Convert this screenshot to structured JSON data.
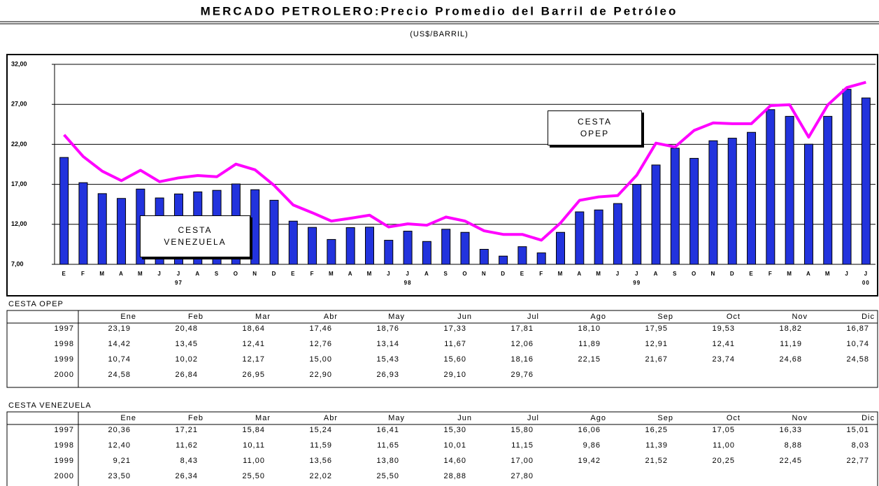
{
  "chart_data": {
    "type": "bar_line",
    "title": "MERCADO PETROLERO:Precio Promedio del Barril de Petróleo",
    "subtitle": "(US$/BARRIL)",
    "categories": [
      "E",
      "F",
      "M",
      "A",
      "M",
      "J",
      "J",
      "A",
      "S",
      "O",
      "N",
      "D",
      "E",
      "F",
      "M",
      "A",
      "M",
      "J",
      "J",
      "A",
      "S",
      "O",
      "N",
      "D",
      "E",
      "F",
      "M",
      "A",
      "M",
      "J",
      "J",
      "A",
      "S",
      "O",
      "N",
      "D",
      "E",
      "F",
      "M",
      "A",
      "M",
      "J",
      "J"
    ],
    "year_labels": [
      "97",
      "98",
      "99",
      "00"
    ],
    "ylim": [
      7,
      32
    ],
    "yticks": [
      {
        "value": 7,
        "label": "7,00"
      },
      {
        "value": 12,
        "label": "12,00"
      },
      {
        "value": 17,
        "label": "17,00"
      },
      {
        "value": 22,
        "label": "22,00"
      },
      {
        "value": 27,
        "label": "27,00"
      },
      {
        "value": 32,
        "label": "32,00"
      }
    ],
    "grid": true,
    "series": [
      {
        "name": "CESTA VENEZUELA",
        "type": "bar",
        "color": "#2233dd",
        "values": [
          20.36,
          17.21,
          15.84,
          15.24,
          16.41,
          15.3,
          15.8,
          16.06,
          16.25,
          17.05,
          16.33,
          15.01,
          12.4,
          11.62,
          10.11,
          11.59,
          11.65,
          10.01,
          11.15,
          9.86,
          11.39,
          11.0,
          8.88,
          8.03,
          9.21,
          8.43,
          11.0,
          13.56,
          13.8,
          14.6,
          17.0,
          19.42,
          21.52,
          20.25,
          22.45,
          22.77,
          23.5,
          26.34,
          25.5,
          22.02,
          25.5,
          28.88,
          27.8
        ]
      },
      {
        "name": "CESTA OPEP",
        "type": "line",
        "color": "#ff00ff",
        "values": [
          23.19,
          20.48,
          18.64,
          17.46,
          18.76,
          17.33,
          17.81,
          18.1,
          17.95,
          19.53,
          18.82,
          16.87,
          14.42,
          13.45,
          12.41,
          12.76,
          13.14,
          11.67,
          12.06,
          11.89,
          12.91,
          12.41,
          11.19,
          10.74,
          10.74,
          10.02,
          12.17,
          15.0,
          15.43,
          15.6,
          18.16,
          22.15,
          21.67,
          23.74,
          24.68,
          24.58,
          24.58,
          26.84,
          26.95,
          22.9,
          26.93,
          29.1,
          29.76
        ]
      }
    ]
  },
  "tables": [
    {
      "title": "CESTA OPEP",
      "columns": [
        "Ene",
        "Feb",
        "Mar",
        "Abr",
        "May",
        "Jun",
        "Jul",
        "Ago",
        "Sep",
        "Oct",
        "Nov",
        "Dic"
      ],
      "rows": [
        {
          "year": "1997",
          "cells": [
            "23,19",
            "20,48",
            "18,64",
            "17,46",
            "18,76",
            "17,33",
            "17,81",
            "18,10",
            "17,95",
            "19,53",
            "18,82",
            "16,87"
          ]
        },
        {
          "year": "1998",
          "cells": [
            "14,42",
            "13,45",
            "12,41",
            "12,76",
            "13,14",
            "11,67",
            "12,06",
            "11,89",
            "12,91",
            "12,41",
            "11,19",
            "10,74"
          ]
        },
        {
          "year": "1999",
          "cells": [
            "10,74",
            "10,02",
            "12,17",
            "15,00",
            "15,43",
            "15,60",
            "18,16",
            "22,15",
            "21,67",
            "23,74",
            "24,68",
            "24,58"
          ]
        },
        {
          "year": "2000",
          "cells": [
            "24,58",
            "26,84",
            "26,95",
            "22,90",
            "26,93",
            "29,10",
            "29,76"
          ]
        }
      ]
    },
    {
      "title": "CESTA VENEZUELA",
      "columns": [
        "Ene",
        "Feb",
        "Mar",
        "Abr",
        "May",
        "Jun",
        "Jul",
        "Ago",
        "Sep",
        "Oct",
        "Nov",
        "Dic"
      ],
      "rows": [
        {
          "year": "1997",
          "cells": [
            "20,36",
            "17,21",
            "15,84",
            "15,24",
            "16,41",
            "15,30",
            "15,80",
            "16,06",
            "16,25",
            "17,05",
            "16,33",
            "15,01"
          ]
        },
        {
          "year": "1998",
          "cells": [
            "12,40",
            "11,62",
            "10,11",
            "11,59",
            "11,65",
            "10,01",
            "11,15",
            "9,86",
            "11,39",
            "11,00",
            "8,88",
            "8,03"
          ]
        },
        {
          "year": "1999",
          "cells": [
            "9,21",
            "8,43",
            "11,00",
            "13,56",
            "13,80",
            "14,60",
            "17,00",
            "19,42",
            "21,52",
            "20,25",
            "22,45",
            "22,77"
          ]
        },
        {
          "year": "2000",
          "cells": [
            "23,50",
            "26,34",
            "25,50",
            "22,02",
            "25,50",
            "28,88",
            "27,80"
          ]
        }
      ]
    }
  ]
}
